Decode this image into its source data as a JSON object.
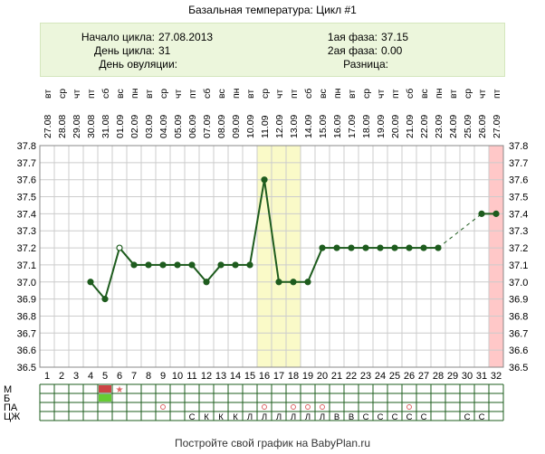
{
  "title": "Базальная температура: Цикл #1",
  "info": {
    "start_label": "Начало цикла:",
    "start_value": "27.08.2013",
    "day_label": "День цикла:",
    "day_value": "31",
    "ovulation_label": "День овуляции:",
    "ovulation_value": "",
    "phase1_label": "1ая фаза:",
    "phase1_value": "37.15",
    "phase2_label": "2ая фаза:",
    "phase2_value": "0.00",
    "diff_label": "Разница:",
    "diff_value": ""
  },
  "footer": "Постройте свой график на BabyPlan.ru",
  "row_labels": [
    "М",
    "Б",
    "ПА",
    "ЦЖ"
  ],
  "colors": {
    "line": "#1e5c1e",
    "grid": "#cccccc",
    "highlight_yellow": "#fafac8",
    "highlight_pink": "#ffc8c8",
    "menstruation": "#cc4444",
    "bleeding": "#66cc33",
    "marker_red": "#dd6666"
  },
  "chart_data": {
    "type": "line",
    "title": "Базальная температура: Цикл #1",
    "ylim": [
      36.5,
      37.8
    ],
    "yticks": [
      "36.5",
      "36.6",
      "36.7",
      "36.8",
      "36.9",
      "37.0",
      "37.1",
      "37.2",
      "37.3",
      "37.4",
      "37.5",
      "37.6",
      "37.7",
      "37.8"
    ],
    "days": [
      "1",
      "2",
      "3",
      "4",
      "5",
      "6",
      "7",
      "8",
      "9",
      "10",
      "11",
      "12",
      "13",
      "14",
      "15",
      "16",
      "17",
      "18",
      "19",
      "20",
      "21",
      "22",
      "23",
      "24",
      "25",
      "26",
      "27",
      "28",
      "29",
      "30",
      "31",
      "32"
    ],
    "weekdays": [
      "вт",
      "ср",
      "чт",
      "пт",
      "сб",
      "вс",
      "пн",
      "вт",
      "ср",
      "чт",
      "пт",
      "сб",
      "вс",
      "пн",
      "вт",
      "ср",
      "чт",
      "пт",
      "сб",
      "вс",
      "пн",
      "вт",
      "ср",
      "чт",
      "пт",
      "сб",
      "вс",
      "пн",
      "вт",
      "ср",
      "чт",
      "пт"
    ],
    "dates": [
      "27.08",
      "28.08",
      "29.08",
      "30.08",
      "31.08",
      "01.09",
      "02.09",
      "03.09",
      "04.09",
      "05.09",
      "06.09",
      "07.09",
      "08.09",
      "09.09",
      "10.09",
      "11.09",
      "12.09",
      "13.09",
      "14.09",
      "15.09",
      "16.09",
      "17.09",
      "18.09",
      "19.09",
      "20.09",
      "21.09",
      "22.09",
      "23.09",
      "24.09",
      "25.09",
      "26.09",
      "27.09"
    ],
    "temperatures": [
      null,
      null,
      null,
      37.0,
      36.9,
      37.2,
      37.1,
      37.1,
      37.1,
      37.1,
      37.1,
      37.0,
      37.1,
      37.1,
      37.1,
      37.6,
      37.0,
      37.0,
      37.0,
      37.2,
      37.2,
      37.2,
      37.2,
      37.2,
      37.2,
      37.2,
      37.2,
      37.2,
      null,
      null,
      37.4,
      37.4
    ],
    "open_points": [
      6
    ],
    "dashed_segments": [
      [
        28,
        31
      ]
    ],
    "highlight_days": {
      "yellow": [
        16,
        17,
        18
      ],
      "pink": [
        32
      ]
    },
    "rows": {
      "М": {
        "5": "filled",
        "6": "star"
      },
      "Б": {
        "5": "filled"
      },
      "ПА": {
        "9": "circle",
        "16": "circle",
        "18": "circle",
        "19": "circle",
        "20": "circle",
        "26": "circle"
      },
      "ЦЖ": {
        "11": "С",
        "12": "К",
        "13": "К",
        "14": "К",
        "15": "Л",
        "16": "Л",
        "17": "Л",
        "18": "Л",
        "19": "Л",
        "20": "Л",
        "21": "В",
        "22": "В",
        "23": "С",
        "24": "С",
        "25": "С",
        "26": "С",
        "27": "С",
        "30": "С",
        "31": "С"
      }
    }
  }
}
